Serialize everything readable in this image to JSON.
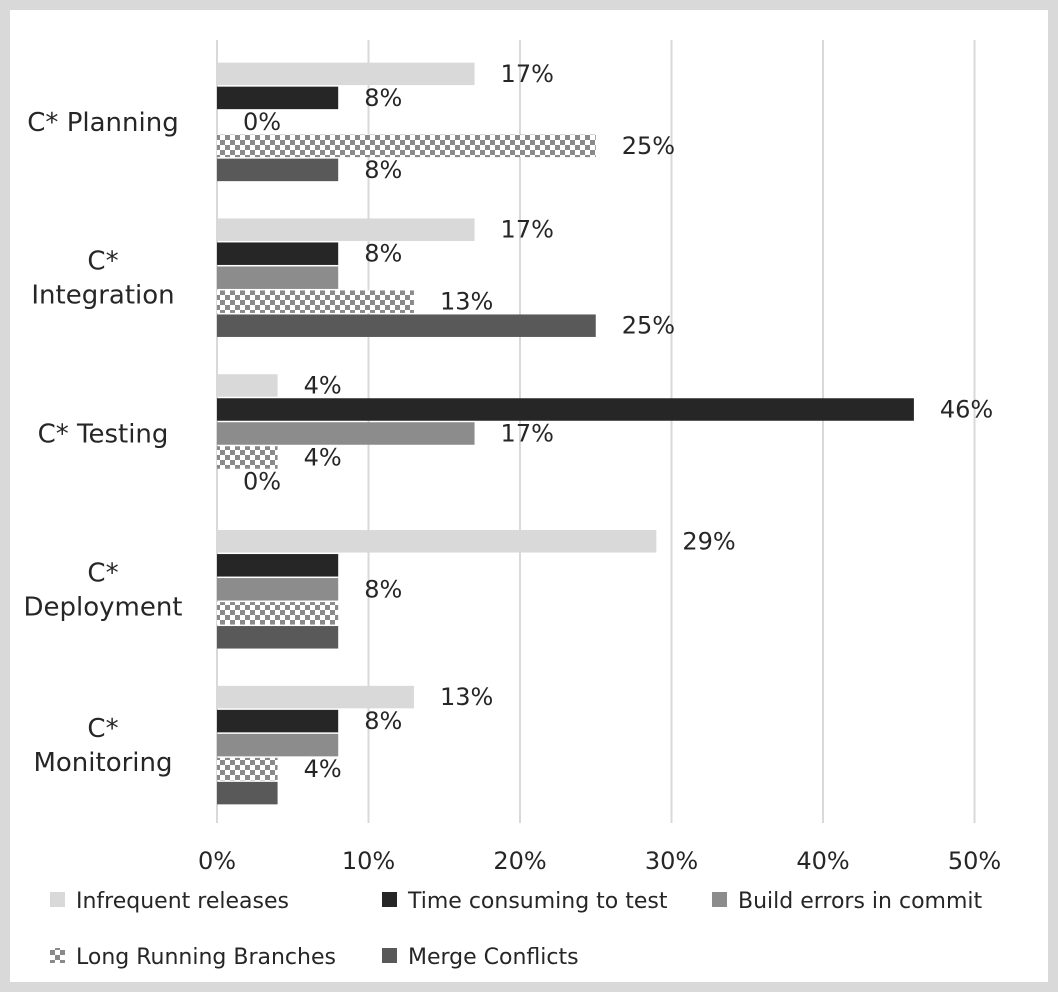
{
  "chart_data": {
    "type": "bar",
    "orientation": "horizontal",
    "categories": [
      [
        "C* Planning"
      ],
      [
        "C*",
        "Integration"
      ],
      [
        "C*  Testing"
      ],
      [
        "C*",
        "Deployment"
      ],
      [
        "C*",
        "Monitoring"
      ]
    ],
    "series": [
      {
        "name": "Infrequent releases",
        "color": "#d9d9d9",
        "pattern": "solid",
        "values": [
          17,
          17,
          4,
          29,
          13
        ]
      },
      {
        "name": "Time consuming to test",
        "color": "#262626",
        "pattern": "solid",
        "values": [
          8,
          8,
          46,
          8,
          8
        ]
      },
      {
        "name": "Build errors in commit",
        "color": "#8c8c8c",
        "pattern": "solid",
        "values": [
          0,
          8,
          17,
          8,
          8
        ]
      },
      {
        "name": "Long Running Branches",
        "color": "#7f7f7f",
        "pattern": "checker",
        "values": [
          25,
          13,
          4,
          8,
          4
        ]
      },
      {
        "name": "Merge Conflicts",
        "color": "#595959",
        "pattern": "solid",
        "values": [
          8,
          25,
          0,
          8,
          4
        ]
      }
    ],
    "data_labels": [
      [
        {
          "series": 0,
          "text": "17%"
        },
        {
          "series": 1,
          "text": "8%"
        },
        {
          "series": 2,
          "text": "0%"
        },
        {
          "series": 3,
          "text": "25%"
        },
        {
          "series": 4,
          "text": "8%"
        }
      ],
      [
        {
          "series": 0,
          "text": "17%"
        },
        {
          "series": 1,
          "text": "8%"
        },
        {
          "series": 3,
          "text": "13%"
        },
        {
          "series": 4,
          "text": "25%"
        }
      ],
      [
        {
          "series": 0,
          "text": "4%"
        },
        {
          "series": 1,
          "text": "46%"
        },
        {
          "series": 2,
          "text": "17%"
        },
        {
          "series": 3,
          "text": "4%"
        },
        {
          "series": 4,
          "text": "0%"
        }
      ],
      [
        {
          "series": 0,
          "text": "29%"
        },
        {
          "series": 2,
          "text": "8%"
        }
      ],
      [
        {
          "series": 0,
          "text": "13%"
        },
        {
          "series": 1,
          "text": "8%"
        },
        {
          "series": 3,
          "text": "4%"
        }
      ]
    ],
    "xaxis": {
      "min": 0,
      "max": 50,
      "step": 10,
      "tick_labels": [
        "0%",
        "10%",
        "20%",
        "30%",
        "40%",
        "50%"
      ]
    },
    "grid": true,
    "legend": {
      "position": "bottom"
    }
  }
}
